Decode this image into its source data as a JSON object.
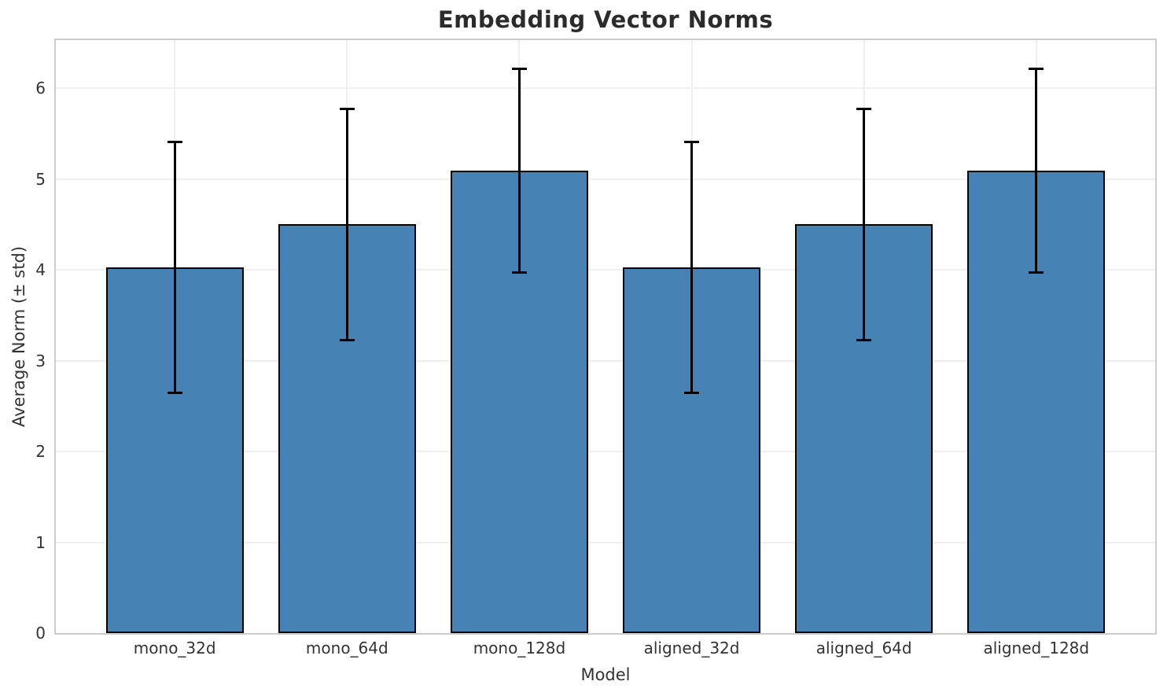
{
  "chart_data": {
    "type": "bar",
    "title": "Embedding Vector Norms",
    "xlabel": "Model",
    "ylabel": "Average Norm (± std)",
    "categories": [
      "mono_32d",
      "mono_64d",
      "mono_128d",
      "aligned_32d",
      "aligned_64d",
      "aligned_128d"
    ],
    "values": [
      4.03,
      4.5,
      5.09,
      4.03,
      4.5,
      5.09
    ],
    "errors": [
      1.38,
      1.27,
      1.12,
      1.38,
      1.27,
      1.12
    ],
    "yticks": [
      0,
      1,
      2,
      3,
      4,
      5,
      6
    ],
    "ylim": [
      0,
      6.53
    ],
    "xlim": [
      -0.69,
      5.69
    ],
    "bar_width": 0.8,
    "grid": true,
    "legend": "none",
    "colors": {
      "bar_fill": "#4682b4",
      "bar_edge": "#000000",
      "error_bar": "#000000",
      "gridline": "#efefef",
      "spine": "#cccccc",
      "tick_text": "#333333",
      "title_text": "#2b2b2b"
    }
  }
}
